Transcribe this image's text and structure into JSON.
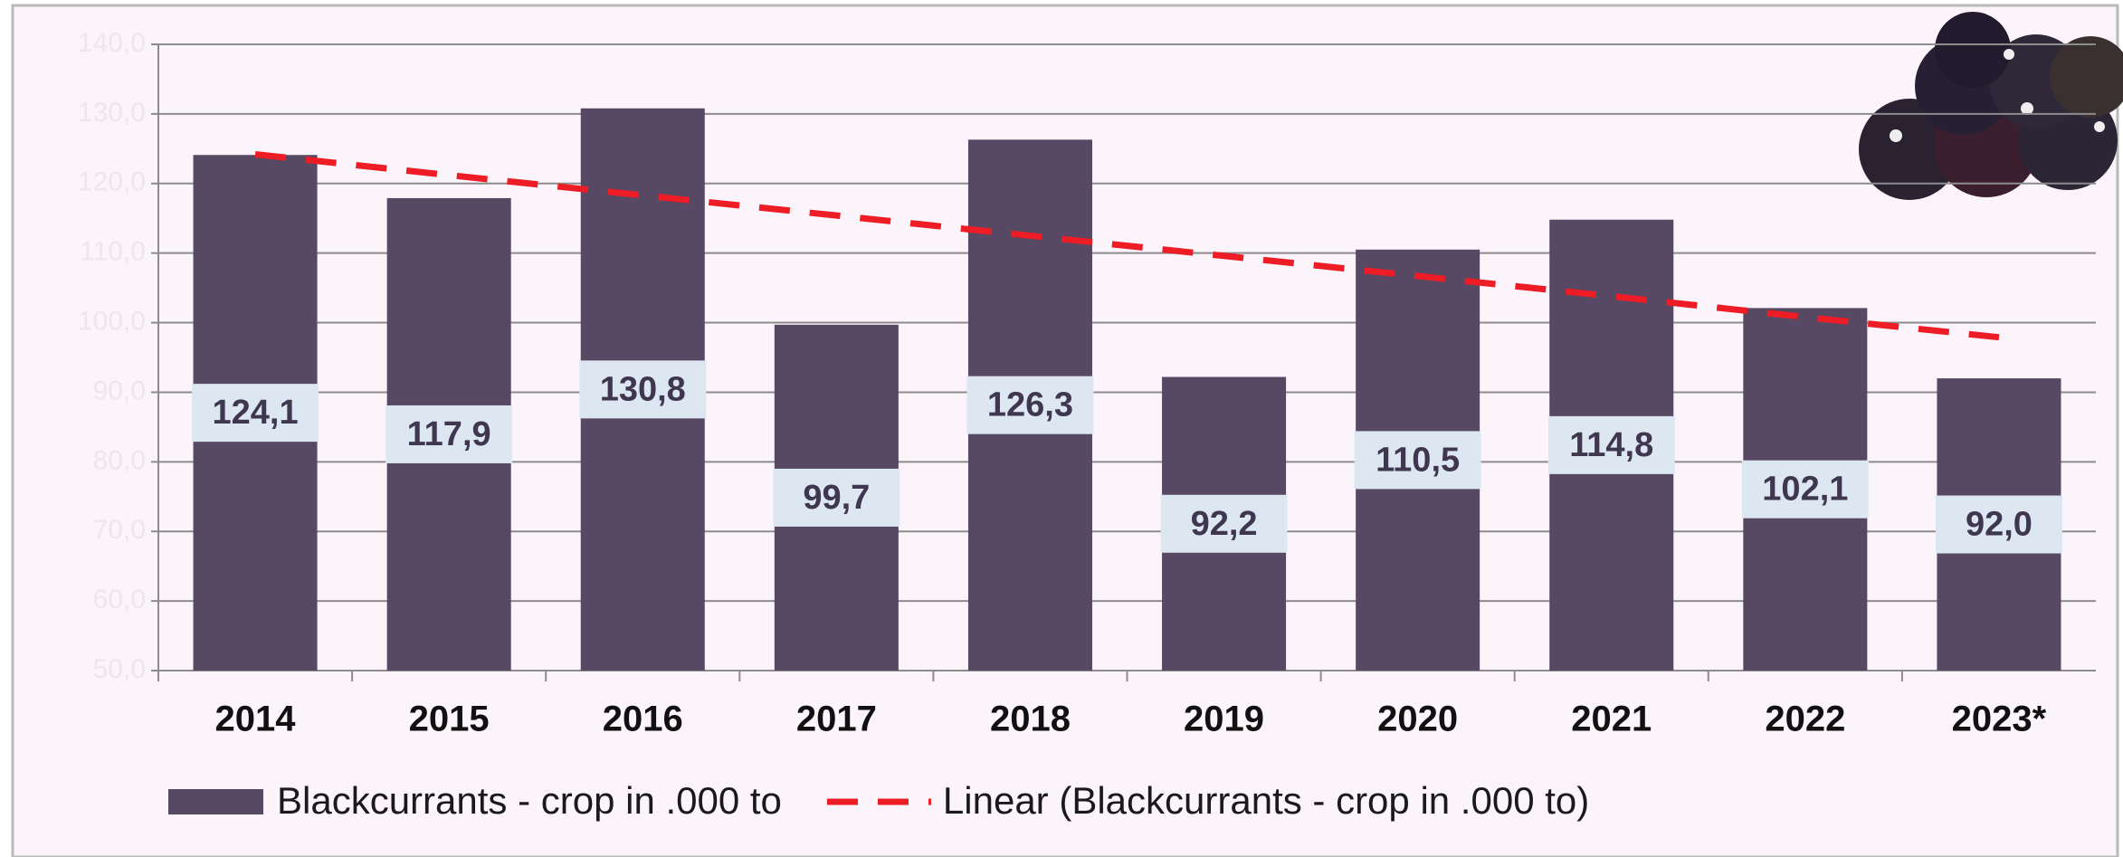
{
  "chart_data": {
    "type": "bar",
    "categories": [
      "2014",
      "2015",
      "2016",
      "2017",
      "2018",
      "2019",
      "2020",
      "2021",
      "2022",
      "2023*"
    ],
    "series": [
      {
        "name": "Blackcurrants - crop in .000 to",
        "color": "#574863",
        "values": [
          124.1,
          117.9,
          130.8,
          99.7,
          126.3,
          92.2,
          110.5,
          114.8,
          102.1,
          92.0
        ],
        "value_labels": [
          "124,1",
          "117,9",
          "130,8",
          "99,7",
          "126,3",
          "92,2",
          "110,5",
          "114,8",
          "102,1",
          "92,0"
        ]
      },
      {
        "name": "Linear (Blackcurrants - crop in .000 to)",
        "color": "#ee1c25",
        "type": "line",
        "values": [
          124.2,
          121.2,
          118.3,
          115.4,
          112.5,
          109.6,
          106.7,
          103.8,
          100.8,
          97.9
        ]
      }
    ],
    "ylim": [
      50,
      140
    ],
    "yticks": [
      {
        "value": 50,
        "label": "50,0"
      },
      {
        "value": 60,
        "label": "60,0"
      },
      {
        "value": 70,
        "label": "70,0"
      },
      {
        "value": 80,
        "label": "80,0"
      },
      {
        "value": 90,
        "label": "90,0"
      },
      {
        "value": 100,
        "label": "100,0"
      },
      {
        "value": 110,
        "label": "110,0"
      },
      {
        "value": 120,
        "label": "120,0"
      },
      {
        "value": 130,
        "label": "130,0"
      },
      {
        "value": 140,
        "label": "140,0"
      }
    ],
    "grid": true
  }
}
